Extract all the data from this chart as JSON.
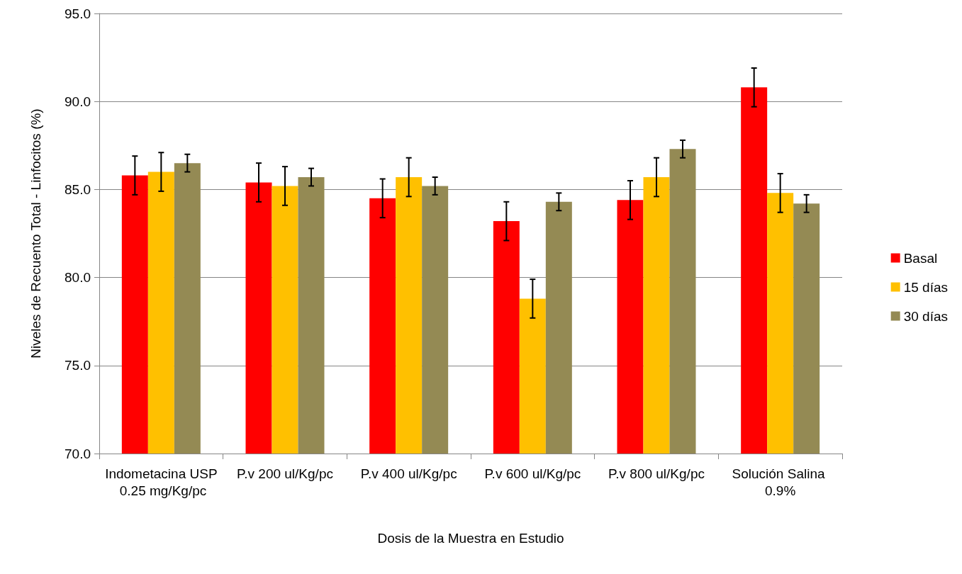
{
  "chart_data": {
    "type": "bar",
    "xlabel": "Dosis de la Muestra en Estudio",
    "ylabel": "Niveles de Recuento Total - Linfocitos (%)",
    "categories": [
      "Indometacina USP 0.25 mg/Kg/pc",
      "P.v 200 ul/Kg/pc",
      "P.v 400 ul/Kg/pc",
      "P.v 600 ul/Kg/pc",
      "P.v 800 ul/Kg/pc",
      "Solución Salina 0.9%"
    ],
    "series": [
      {
        "name": "Basal",
        "color": "#ff0000",
        "values": [
          85.8,
          85.4,
          84.5,
          83.2,
          84.4,
          90.8
        ],
        "errors": [
          1.1,
          1.1,
          1.1,
          1.1,
          1.1,
          1.1
        ]
      },
      {
        "name": "15 días",
        "color": "#ffc000",
        "values": [
          86.0,
          85.2,
          85.7,
          78.8,
          85.7,
          84.8
        ],
        "errors": [
          1.1,
          1.1,
          1.1,
          1.1,
          1.1,
          1.1
        ]
      },
      {
        "name": "30 días",
        "color": "#948a54",
        "values": [
          86.5,
          85.7,
          85.2,
          84.3,
          87.3,
          84.2
        ],
        "errors": [
          0.5,
          0.5,
          0.5,
          0.5,
          0.5,
          0.5
        ]
      }
    ],
    "ylim": [
      70,
      95
    ],
    "yticks": [
      {
        "value": 70,
        "label": "70.0"
      },
      {
        "value": 75,
        "label": "75.0"
      },
      {
        "value": 80,
        "label": "80.0"
      },
      {
        "value": 85,
        "label": "85.0"
      },
      {
        "value": 90,
        "label": "90.0"
      },
      {
        "value": 95,
        "label": "95.0"
      }
    ],
    "grid": "y",
    "legend": "right"
  }
}
